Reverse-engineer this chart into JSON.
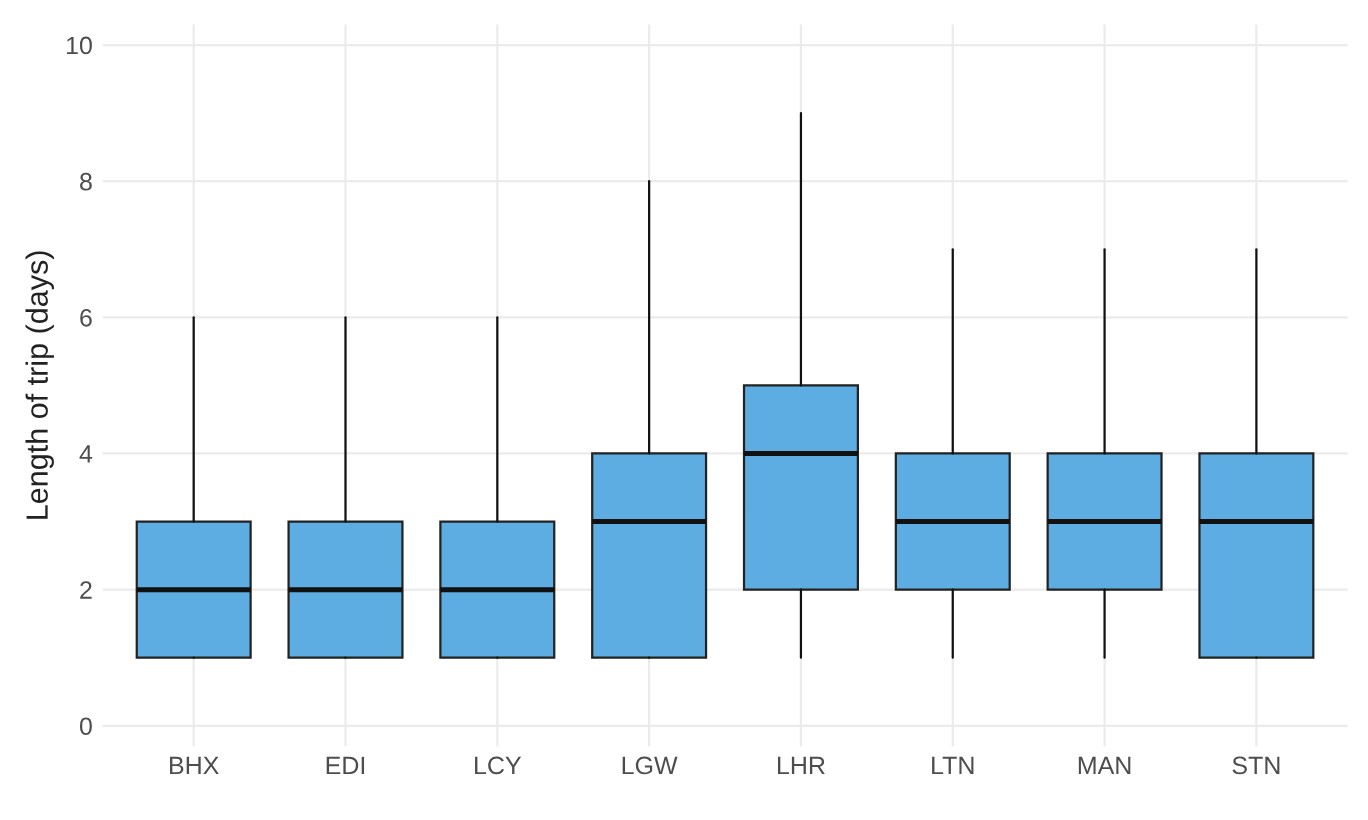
{
  "chart_data": {
    "type": "box",
    "ylabel": "Length of trip (days)",
    "categories": [
      "BHX",
      "EDI",
      "LCY",
      "LGW",
      "LHR",
      "LTN",
      "MAN",
      "STN"
    ],
    "series": [
      {
        "color": "#5dade2",
        "boxes": [
          {
            "low": 1,
            "q1": 1,
            "median": 2,
            "q3": 3,
            "high": 6
          },
          {
            "low": 1,
            "q1": 1,
            "median": 2,
            "q3": 3,
            "high": 6
          },
          {
            "low": 1,
            "q1": 1,
            "median": 2,
            "q3": 3,
            "high": 6
          },
          {
            "low": 1,
            "q1": 1,
            "median": 3,
            "q3": 4,
            "high": 8
          },
          {
            "low": 1,
            "q1": 2,
            "median": 4,
            "q3": 5,
            "high": 9
          },
          {
            "low": 1,
            "q1": 2,
            "median": 3,
            "q3": 4,
            "high": 7
          },
          {
            "low": 1,
            "q1": 2,
            "median": 3,
            "q3": 4,
            "high": 7
          },
          {
            "low": 1,
            "q1": 1,
            "median": 3,
            "q3": 4,
            "high": 7
          }
        ]
      }
    ],
    "ylim": [
      -0.3,
      10.3
    ],
    "yticks": [
      0,
      2,
      4,
      6,
      8,
      10
    ],
    "grid": true
  }
}
